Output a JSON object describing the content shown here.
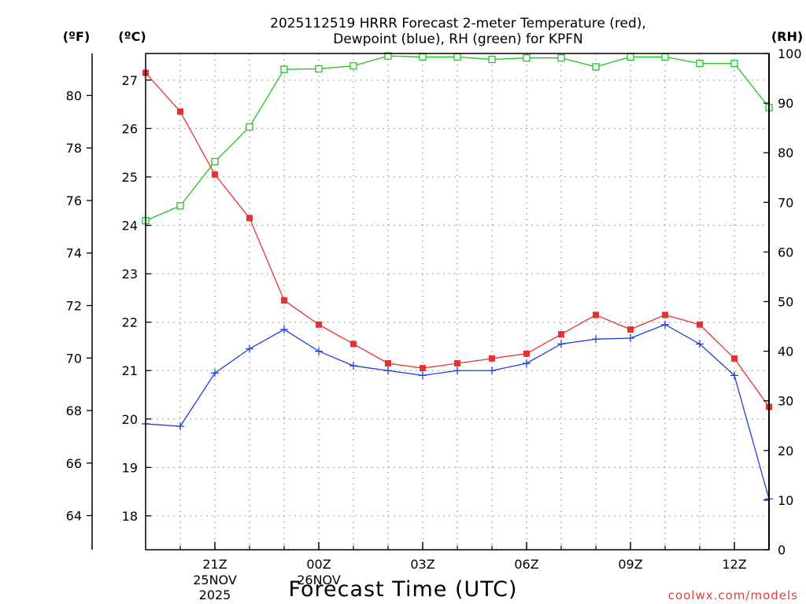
{
  "chart_data": {
    "type": "line",
    "title_lines": [
      "2025112519 HRRR Forecast 2-meter Temperature (red),",
      "Dewpoint (blue), RH (green) for KPFN"
    ],
    "xlabel": "Forecast Time (UTC)",
    "x_hours": [
      19,
      20,
      21,
      22,
      23,
      24,
      25,
      26,
      27,
      28,
      29,
      30,
      31,
      32,
      33,
      34,
      35,
      36,
      37
    ],
    "xlim": [
      19,
      37
    ],
    "x_ticks": [
      {
        "hour": 21,
        "label": "21Z",
        "date": "25NOV",
        "year": "2025"
      },
      {
        "hour": 24,
        "label": "00Z",
        "date": "26NOV",
        "year": ""
      },
      {
        "hour": 27,
        "label": "03Z",
        "date": "",
        "year": ""
      },
      {
        "hour": 30,
        "label": "06Z",
        "date": "",
        "year": ""
      },
      {
        "hour": 33,
        "label": "09Z",
        "date": "",
        "year": ""
      },
      {
        "hour": 36,
        "label": "12Z",
        "date": "",
        "year": ""
      }
    ],
    "axes": {
      "fahrenheit": {
        "unit_label": "(ºF)",
        "ylim": [
          62.7,
          81.6
        ],
        "ticks": [
          64,
          66,
          68,
          70,
          72,
          74,
          76,
          78,
          80
        ]
      },
      "celsius": {
        "unit_label": "(ºC)",
        "ylim": [
          17.3,
          27.55
        ],
        "ticks": [
          18,
          19,
          20,
          21,
          22,
          23,
          24,
          25,
          26,
          27
        ]
      },
      "rh": {
        "unit_label": "(RH)",
        "ylim": [
          0,
          100
        ],
        "ticks": [
          0,
          10,
          20,
          30,
          40,
          50,
          60,
          70,
          80,
          90,
          100
        ]
      }
    },
    "series": [
      {
        "name": "Temperature",
        "unit": "C",
        "color": "#e8302e",
        "marker": "filled-square",
        "values": [
          27.15,
          26.35,
          25.05,
          24.15,
          22.45,
          21.95,
          21.55,
          21.15,
          21.05,
          21.15,
          21.25,
          21.35,
          21.75,
          22.15,
          21.85,
          22.15,
          21.95,
          21.25,
          20.25
        ]
      },
      {
        "name": "Dewpoint",
        "unit": "C",
        "color": "#1f3fe0",
        "marker": "plus",
        "values": [
          19.9,
          19.85,
          20.95,
          21.45,
          21.85,
          21.4,
          21.1,
          21.0,
          20.9,
          21.0,
          21.0,
          21.15,
          21.55,
          21.65,
          21.67,
          21.95,
          21.55,
          20.9,
          18.35
        ]
      },
      {
        "name": "RH",
        "unit": "%",
        "color": "#22c322",
        "marker": "open-square",
        "values": [
          66.3,
          69.3,
          78.2,
          85.2,
          96.8,
          96.9,
          97.5,
          99.5,
          99.3,
          99.3,
          98.8,
          99.1,
          99.1,
          97.3,
          99.3,
          99.3,
          98.0,
          98.0,
          89.1
        ]
      }
    ],
    "credit": "coolwx.com/models"
  }
}
